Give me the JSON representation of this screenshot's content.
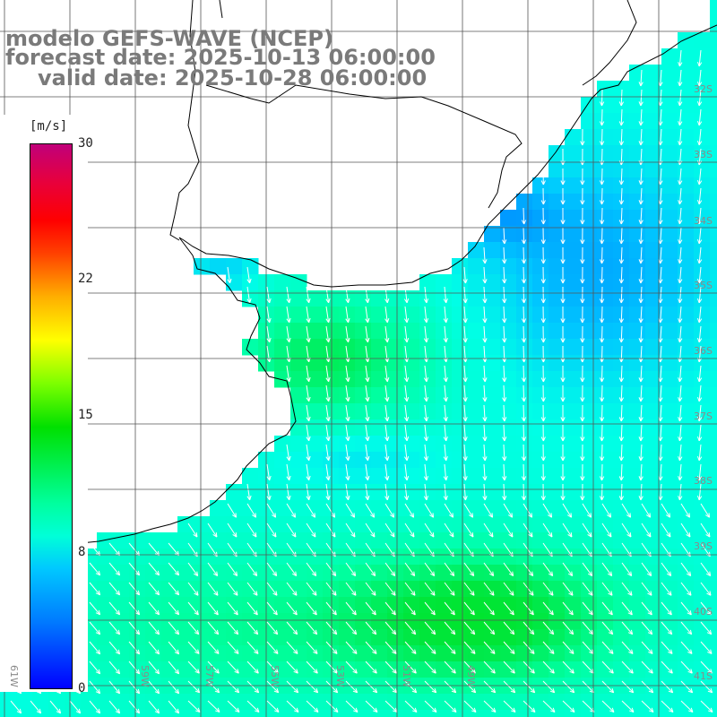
{
  "title": {
    "line1": "modelo GEFS-WAVE (NCEP)",
    "line2": "forecast date: 2025-10-13 06:00:00",
    "line3": "valid date: 2025-10-28 06:00:00"
  },
  "legend": {
    "unit": "[m/s]",
    "ticks": [
      "30",
      "22",
      "15",
      "8",
      "0"
    ],
    "tick_values": [
      30,
      22,
      15,
      8,
      0
    ]
  },
  "lat_labels": [
    "32S",
    "33S",
    "34S",
    "35S",
    "36S",
    "37S",
    "38S",
    "39S",
    "40S",
    "41S"
  ],
  "lon_labels": [
    "61W",
    "59W",
    "57W",
    "55W",
    "53W",
    "51W",
    "49W"
  ],
  "colors": {
    "land": "#ffffff",
    "grid": "#555555",
    "coast": "#000000",
    "arrows": "#ffffff",
    "title_text": "#7a7a7a"
  }
}
